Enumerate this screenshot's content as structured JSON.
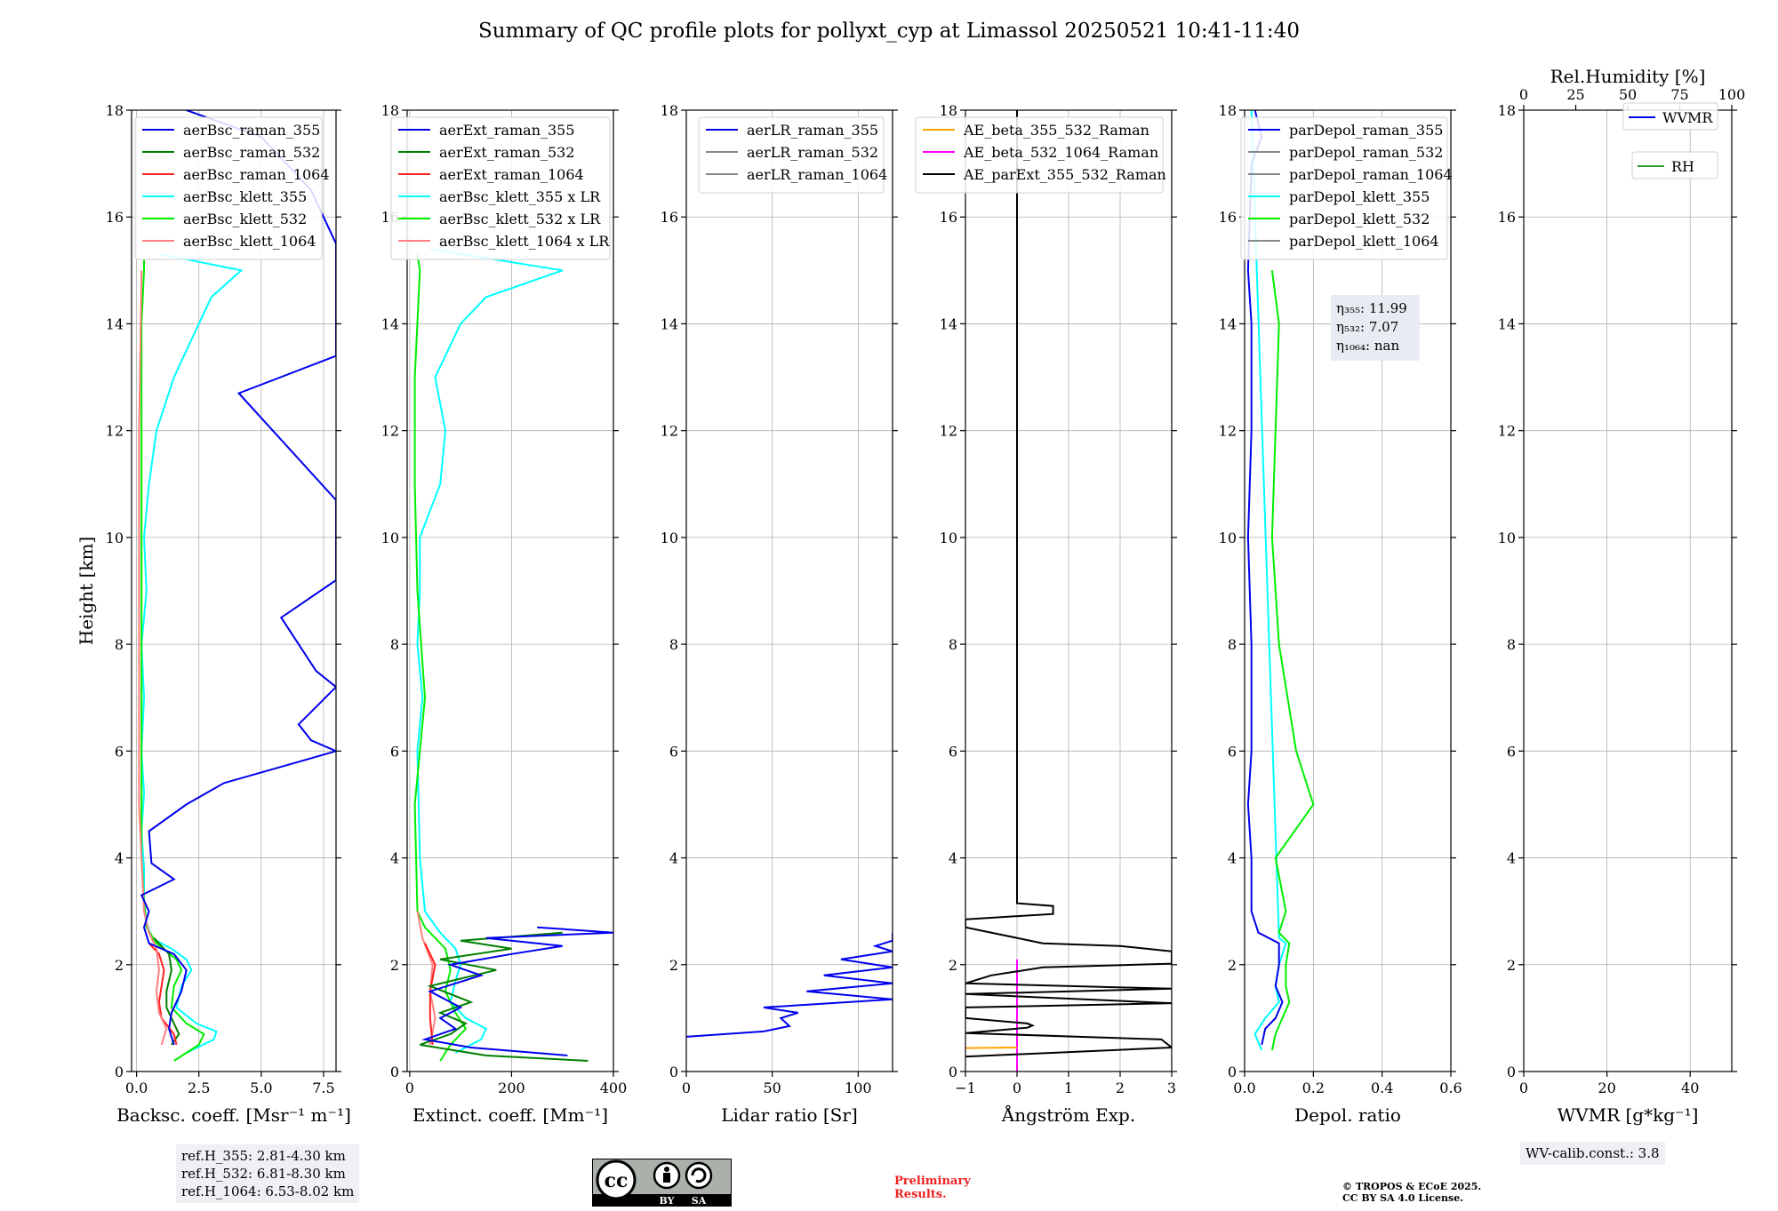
{
  "figure_title": "Summary of QC profile plots for pollyxt_cyp at Limassol 20250521 10:41-11:40",
  "y_axis_label": "Height [km]",
  "colors": {
    "raman_355": "#0000ee",
    "raman_532": "#007f00",
    "raman_1064": "#ff2020",
    "klett_355": "#00ffff",
    "klett_532": "#00ee00",
    "klett_1064": "#ff8080",
    "ae_355_532": "#ffa500",
    "ae_532_1064": "#ff00ff",
    "ae_parext": "#000000",
    "rh": "#2ca02c"
  },
  "chart_data": [
    {
      "type": "line",
      "id": "bsc",
      "xlabel": "Backsc. coeff. [Msr⁻¹ m⁻¹]",
      "xlim": [
        -0.2,
        8.0
      ],
      "ylim": [
        0,
        18
      ],
      "xticks": [
        0,
        2.5,
        5,
        7.5
      ],
      "xtick_labels": [
        "0.0",
        "2.5",
        "5.0",
        "7.5"
      ],
      "legend": [
        "aerBsc_raman_355",
        "aerBsc_raman_532",
        "aerBsc_raman_1064",
        "aerBsc_klett_355",
        "aerBsc_klett_532",
        "aerBsc_klett_1064"
      ],
      "series": [
        {
          "name": "aerBsc_klett_355",
          "color": "#00ffff",
          "y": [
            0.35,
            0.6,
            0.75,
            0.9,
            1.2,
            1.6,
            1.9,
            2.1,
            2.3,
            2.5,
            2.8,
            3.2,
            3.8,
            4.5,
            5.2,
            6,
            7,
            8,
            9,
            10,
            11,
            12,
            13,
            14,
            14.5,
            15,
            15.3
          ],
          "x": [
            2.0,
            3.1,
            3.2,
            2.4,
            1.6,
            1.8,
            2.2,
            2.0,
            1.4,
            0.6,
            0.4,
            0.3,
            0.3,
            0.2,
            0.3,
            0.2,
            0.3,
            0.2,
            0.4,
            0.3,
            0.5,
            0.8,
            1.5,
            2.5,
            3.0,
            4.2,
            1.0
          ]
        },
        {
          "name": "aerBsc_klett_532",
          "color": "#00ee00",
          "y": [
            0.2,
            0.5,
            0.7,
            0.9,
            1.2,
            1.6,
            1.9,
            2.1,
            2.4,
            2.7,
            3.2,
            4,
            5,
            6,
            8,
            10,
            12,
            14,
            15,
            15.2
          ],
          "x": [
            1.5,
            2.5,
            2.7,
            2.0,
            1.4,
            1.5,
            1.8,
            1.6,
            0.8,
            0.4,
            0.3,
            0.2,
            0.2,
            0.2,
            0.2,
            0.2,
            0.2,
            0.2,
            0.3,
            0.3
          ]
        },
        {
          "name": "aerBsc_raman_532",
          "color": "#007f00",
          "y": [
            0.5,
            0.7,
            0.9,
            1.2,
            1.5,
            1.9,
            2.2,
            2.5
          ],
          "x": [
            1.4,
            1.7,
            1.5,
            1.2,
            1.2,
            1.4,
            1.3,
            0.7
          ]
        },
        {
          "name": "aerBsc_raman_1064",
          "color": "#ff2020",
          "y": [
            0.5,
            0.7,
            1.0,
            1.3,
            1.6,
            1.9,
            2.2,
            2.4
          ],
          "x": [
            1.6,
            1.5,
            1.0,
            0.9,
            1.0,
            1.1,
            0.9,
            0.5
          ]
        },
        {
          "name": "aerBsc_klett_1064",
          "color": "#ff8080",
          "y": [
            0.5,
            0.8,
            1.1,
            1.5,
            1.9,
            2.3,
            2.6,
            3,
            5,
            8,
            12,
            15
          ],
          "x": [
            1.0,
            1.2,
            0.9,
            0.8,
            0.9,
            0.8,
            0.5,
            0.3,
            0.1,
            0.1,
            0.1,
            0.2
          ]
        },
        {
          "name": "aerBsc_raman_355",
          "color": "#0000ee",
          "y": [
            0.5,
            0.8,
            1.1,
            1.5,
            1.9,
            2.2,
            2.4,
            2.7,
            3.0,
            3.3,
            3.6,
            3.9,
            4.5,
            5.0,
            5.4,
            5.8,
            6.0,
            6.2,
            6.5,
            7.2,
            7.5,
            8.5,
            9.2,
            9.5,
            10.2,
            10.7,
            12.7,
            13.4,
            13.5,
            15.5,
            16.5,
            17.5,
            18
          ],
          "x": [
            1.5,
            1.3,
            1.4,
            1.8,
            2.0,
            1.5,
            0.5,
            0.3,
            0.5,
            0.2,
            1.5,
            0.6,
            0.5,
            2.0,
            3.5,
            6.5,
            8.0,
            7.0,
            6.5,
            8.0,
            7.2,
            5.8,
            8.0,
            8.0,
            8.0,
            8.0,
            4.1,
            8.0,
            8.0,
            8.0,
            7.0,
            5.0,
            2.0
          ]
        }
      ]
    },
    {
      "type": "line",
      "id": "ext",
      "xlabel": "Extinct. coeff. [Mm⁻¹]",
      "xlim": [
        -5,
        400
      ],
      "ylim": [
        0,
        18
      ],
      "xticks": [
        0,
        200,
        400
      ],
      "xtick_labels": [
        "0",
        "200",
        "400"
      ],
      "legend": [
        "aerExt_raman_355",
        "aerExt_raman_532",
        "aerExt_raman_1064",
        "aerBsc_klett_355 x LR",
        "aerBsc_klett_532 x LR",
        "aerBsc_klett_1064 x LR"
      ],
      "series": [
        {
          "name": "aerBsc_klett_355 x LR",
          "color": "#00ffff",
          "y": [
            0.35,
            0.6,
            0.8,
            1.0,
            1.3,
            1.7,
            2.0,
            2.3,
            2.6,
            3.0,
            4,
            6,
            7,
            8,
            9,
            10,
            11,
            12,
            13,
            14,
            14.5,
            15,
            15.4
          ],
          "x": [
            90,
            140,
            150,
            110,
            80,
            90,
            100,
            90,
            60,
            30,
            20,
            15,
            25,
            15,
            20,
            20,
            60,
            70,
            50,
            100,
            150,
            300,
            40
          ]
        },
        {
          "name": "aerBsc_klett_532 x LR",
          "color": "#00ee00",
          "y": [
            0.2,
            0.5,
            0.8,
            1.1,
            1.5,
            1.9,
            2.3,
            2.7,
            3,
            5,
            7,
            9,
            11,
            13,
            15,
            15.3
          ],
          "x": [
            60,
            80,
            110,
            90,
            70,
            80,
            70,
            30,
            15,
            10,
            30,
            15,
            10,
            10,
            20,
            15
          ]
        },
        {
          "name": "aerBsc_klett_1064 x LR",
          "color": "#ff8080",
          "y": [
            0.5,
            1,
            1.5,
            2,
            2.5,
            3
          ],
          "x": [
            40,
            50,
            40,
            45,
            25,
            15
          ]
        },
        {
          "name": "aerExt_raman_1064",
          "color": "#ff2020",
          "y": [
            0.5,
            1,
            1.5,
            2,
            2.4
          ],
          "x": [
            45,
            40,
            40,
            50,
            30
          ]
        },
        {
          "name": "aerExt_raman_532",
          "color": "#007f00",
          "y": [
            0.2,
            0.3,
            0.5,
            0.7,
            0.9,
            1.1,
            1.3,
            1.6,
            1.9,
            2.1,
            2.3,
            2.45,
            2.6
          ],
          "x": [
            350,
            150,
            20,
            80,
            110,
            60,
            120,
            40,
            170,
            60,
            200,
            100,
            300
          ]
        },
        {
          "name": "aerExt_raman_355",
          "color": "#0000ee",
          "y": [
            0.3,
            0.45,
            0.6,
            0.8,
            1.0,
            1.2,
            1.5,
            1.8,
            2.0,
            2.2,
            2.35,
            2.5,
            2.6,
            2.7
          ],
          "x": [
            310,
            120,
            30,
            90,
            60,
            100,
            40,
            140,
            80,
            200,
            300,
            150,
            400,
            250
          ]
        }
      ]
    },
    {
      "type": "line",
      "id": "lr",
      "xlabel": "Lidar ratio [Sr]",
      "xlim": [
        0,
        120
      ],
      "ylim": [
        0,
        18
      ],
      "xticks": [
        0,
        50,
        100
      ],
      "xtick_labels": [
        "0",
        "50",
        "100"
      ],
      "legend": [
        "aerLR_raman_355",
        "aerLR_raman_532",
        "aerLR_raman_1064"
      ],
      "series": [
        {
          "name": "aerLR_raman_355",
          "color": "#0000ee",
          "y": [
            0.65,
            0.75,
            0.85,
            1.0,
            1.1,
            1.2,
            1.35,
            1.5,
            1.65,
            1.8,
            1.95,
            2.1,
            2.25,
            2.35,
            2.45,
            2.55,
            2.6
          ],
          "x": [
            0,
            45,
            60,
            55,
            65,
            45,
            120,
            70,
            120,
            80,
            120,
            90,
            120,
            110,
            120,
            120,
            120
          ]
        }
      ]
    },
    {
      "type": "line",
      "id": "ae",
      "xlabel": "Ångström Exp.",
      "xlim": [
        -1,
        3
      ],
      "ylim": [
        0,
        18
      ],
      "xticks": [
        -1,
        0,
        1,
        2,
        3
      ],
      "xtick_labels": [
        "−1",
        "0",
        "1",
        "2",
        "3"
      ],
      "legend": [
        "AE_beta_355_532_Raman",
        "AE_beta_532_1064_Raman",
        "AE_parExt_355_532_Raman"
      ],
      "series": [
        {
          "name": "AE_beta_532_1064_Raman",
          "color": "#ff00ff",
          "y": [
            0,
            2.1
          ],
          "x": [
            0,
            0
          ]
        },
        {
          "name": "AE_beta_355_532_Raman",
          "color": "#ffa500",
          "y": [
            0.44,
            0.45
          ],
          "x": [
            -1,
            0
          ]
        },
        {
          "name": "AE_parExt_355_532_Raman",
          "color": "#000000",
          "y": [
            0.28,
            0.45,
            0.6,
            0.72,
            0.82,
            0.86,
            0.9,
            1.0,
            1.2,
            1.28,
            1.45,
            1.55,
            1.65,
            1.8,
            1.95,
            2.02,
            2.25,
            2.35,
            2.4,
            2.7,
            2.85,
            2.95,
            3.0,
            3.1,
            3.15,
            18
          ],
          "x": [
            -1,
            3,
            2.8,
            -1,
            0.2,
            0.3,
            0.2,
            -1,
            -1,
            3,
            -1,
            3,
            -1,
            -0.5,
            0.5,
            3,
            3,
            2,
            0.5,
            -1,
            -1,
            0.7,
            0.7,
            0.7,
            0,
            0
          ]
        }
      ]
    },
    {
      "type": "line",
      "id": "depol",
      "xlabel": "Depol. ratio",
      "xlim": [
        0,
        0.6
      ],
      "ylim": [
        0,
        18
      ],
      "xticks": [
        0,
        0.2,
        0.4,
        0.6
      ],
      "xtick_labels": [
        "0.0",
        "0.2",
        "0.4",
        "0.6"
      ],
      "legend": [
        "parDepol_raman_355",
        "parDepol_raman_532",
        "parDepol_raman_1064",
        "parDepol_klett_355",
        "parDepol_klett_532",
        "parDepol_klett_1064"
      ],
      "annotation": [
        "η₃₅₅: 11.99",
        "η₅₃₂: 7.07",
        "η₁₀₆₄: nan"
      ],
      "series": [
        {
          "name": "parDepol_klett_355",
          "color": "#00ffff",
          "y": [
            0.4,
            0.7,
            1.0,
            1.3,
            1.6,
            2.0,
            2.4,
            2.5,
            18
          ],
          "x": [
            0.05,
            0.03,
            0.06,
            0.1,
            0.09,
            0.1,
            0.12,
            0.1,
            0.02
          ]
        },
        {
          "name": "parDepol_klett_532",
          "color": "#00ee00",
          "y": [
            0.4,
            0.7,
            1.0,
            1.3,
            1.6,
            2.0,
            2.4,
            2.6,
            3.0,
            4,
            5,
            6,
            8,
            10,
            12,
            14,
            15
          ],
          "x": [
            0.08,
            0.09,
            0.11,
            0.13,
            0.12,
            0.12,
            0.13,
            0.1,
            0.12,
            0.09,
            0.2,
            0.15,
            0.1,
            0.08,
            0.09,
            0.1,
            0.08
          ]
        },
        {
          "name": "parDepol_raman_355",
          "color": "#0000ee",
          "y": [
            0.5,
            0.8,
            1.0,
            1.3,
            1.6,
            2.0,
            2.4,
            2.6,
            3,
            4,
            5,
            6,
            8,
            10,
            12,
            14,
            15,
            17,
            17.5,
            18
          ],
          "x": [
            0.05,
            0.06,
            0.09,
            0.11,
            0.09,
            0.1,
            0.1,
            0.04,
            0.02,
            0.02,
            0.01,
            0.02,
            0.02,
            0.01,
            0.02,
            0.02,
            0.01,
            0.02,
            0.05,
            0.03
          ]
        }
      ]
    },
    {
      "type": "line",
      "id": "wv",
      "xlabel": "WVMR [g*kg⁻¹]",
      "xlim": [
        0,
        50
      ],
      "ylim": [
        0,
        18
      ],
      "xticks": [
        0,
        20,
        40
      ],
      "xtick_labels": [
        "0",
        "20",
        "40"
      ],
      "top_axis": {
        "label": "Rel.Humidity [%]",
        "ticks": [
          0,
          25,
          50,
          75,
          100
        ],
        "tick_labels": [
          "0",
          "25",
          "50",
          "75",
          "100"
        ]
      },
      "legend": [
        "WVMR",
        "RH"
      ],
      "series": []
    }
  ],
  "yticks": [
    0,
    2,
    4,
    6,
    8,
    10,
    12,
    14,
    16,
    18
  ],
  "info_boxes": {
    "refh": [
      "ref.H_355: 2.81-4.30 km",
      "ref.H_532: 6.81-8.30 km",
      "ref.H_1064: 6.53-8.02 km"
    ],
    "wv_calib": "WV-calib.const.: 3.8"
  },
  "license": {
    "cc": "cc",
    "by": "BY",
    "sa": "SA"
  },
  "preliminary": [
    "Preliminary",
    "Results."
  ],
  "copyright": [
    "© TROPOS & ECoE 2025.",
    "CC BY SA 4.0 License."
  ]
}
